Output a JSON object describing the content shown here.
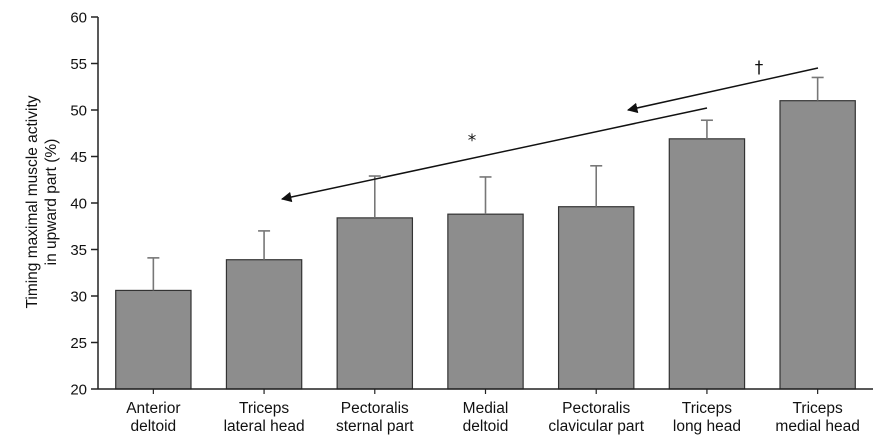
{
  "chart_data": {
    "type": "bar",
    "categories": [
      [
        "Anterior",
        "deltoid"
      ],
      [
        "Triceps",
        "lateral head"
      ],
      [
        "Pectoralis",
        "sternal part"
      ],
      [
        "Medial",
        "deltoid"
      ],
      [
        "Pectoralis",
        "clavicular part"
      ],
      [
        "Triceps",
        "long head"
      ],
      [
        "Triceps",
        "medial head"
      ]
    ],
    "values": [
      30.6,
      33.9,
      38.4,
      38.8,
      39.6,
      46.9,
      51.0
    ],
    "errors": [
      3.5,
      3.1,
      4.5,
      4.0,
      4.4,
      2.0,
      2.5
    ],
    "ylabel": [
      "Timing maximal muscle activity",
      "in upward part (%)"
    ],
    "xlabel": "",
    "title": "",
    "ylim": [
      20,
      60
    ],
    "yticks": [
      20,
      25,
      30,
      35,
      40,
      45,
      50,
      55,
      60
    ],
    "grid": false,
    "bar_color": "#8d8d8d",
    "annotations": [
      {
        "symbol": "*",
        "meaning": "arrow from Triceps long head to Triceps lateral head"
      },
      {
        "symbol": "†",
        "meaning": "arrow from Triceps medial head to Pectoralis clavicular part"
      }
    ]
  }
}
